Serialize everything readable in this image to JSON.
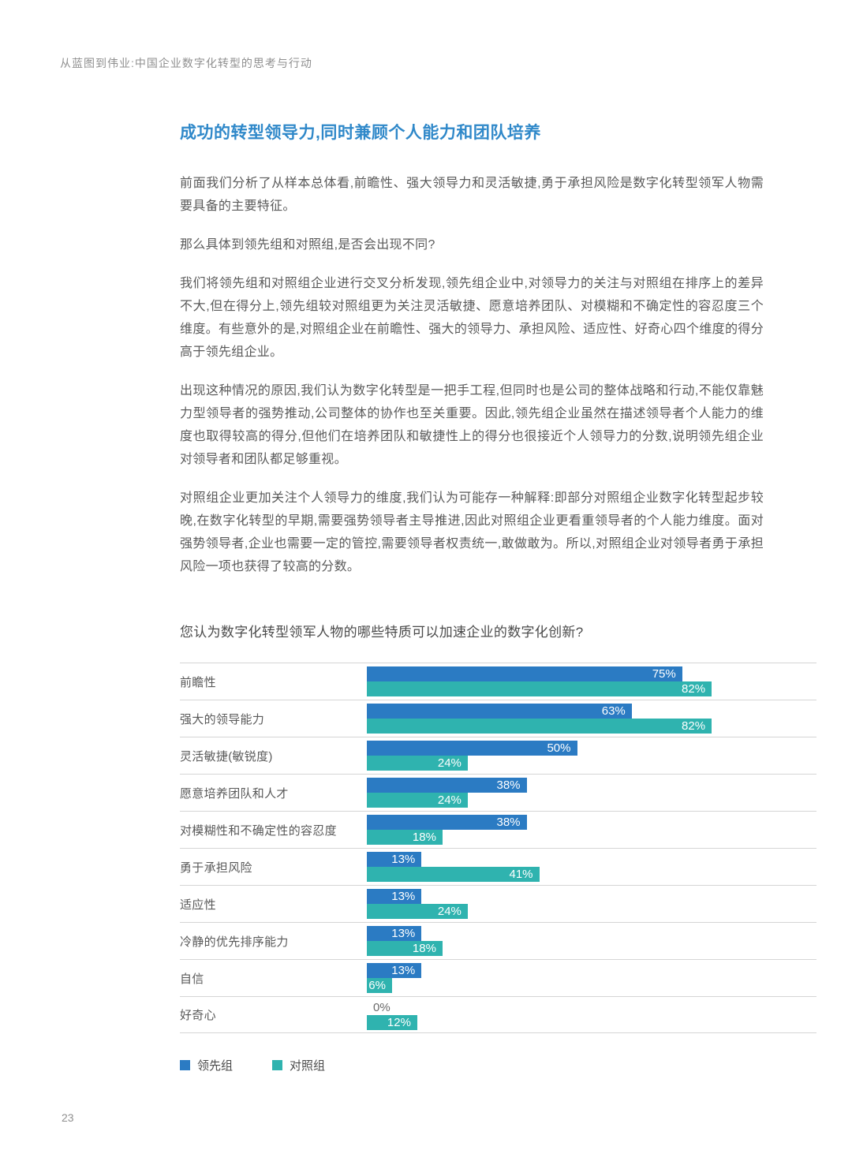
{
  "page": {
    "header": "从蓝图到伟业:中国企业数字化转型的思考与行动",
    "page_number": "23"
  },
  "article": {
    "heading": "成功的转型领导力,同时兼顾个人能力和团队培养",
    "paragraphs": [
      "前面我们分析了从样本总体看,前瞻性、强大领导力和灵活敏捷,勇于承担风险是数字化转型领军人物需要具备的主要特征。",
      "那么具体到领先组和对照组,是否会出现不同?",
      "我们将领先组和对照组企业进行交叉分析发现,领先组企业中,对领导力的关注与对照组在排序上的差异不大,但在得分上,领先组较对照组更为关注灵活敏捷、愿意培养团队、对模糊和不确定性的容忍度三个维度。有些意外的是,对照组企业在前瞻性、强大的领导力、承担风险、适应性、好奇心四个维度的得分高于领先组企业。",
      "出现这种情况的原因,我们认为数字化转型是一把手工程,但同时也是公司的整体战略和行动,不能仅靠魅力型领导者的强势推动,公司整体的协作也至关重要。因此,领先组企业虽然在描述领导者个人能力的维度也取得较高的得分,但他们在培养团队和敏捷性上的得分也很接近个人领导力的分数,说明领先组企业对领导者和团队都足够重视。",
      "对照组企业更加关注个人领导力的维度,我们认为可能存一种解释:即部分对照组企业数字化转型起步较晚,在数字化转型的早期,需要强势领导者主导推进,因此对照组企业更看重领导者的个人能力维度。面对强势领导者,企业也需要一定的管控,需要领导者权责统一,敢做敢为。所以,对照组企业对领导者勇于承担风险一项也获得了较高的分数。"
    ]
  },
  "chart_data": {
    "type": "bar",
    "orientation": "horizontal",
    "title": "您认为数字化转型领军人物的哪些特质可以加速企业的数字化创新?",
    "categories": [
      "前瞻性",
      "强大的领导能力",
      "灵活敏捷(敏锐度)",
      "愿意培养团队和人才",
      "对模糊性和不确定性的容忍度",
      "勇于承担风险",
      "适应性",
      "冷静的优先排序能力",
      "自信",
      "好奇心"
    ],
    "series": [
      {
        "name": "领先组",
        "color": "#2b7bc3",
        "values": [
          75,
          63,
          50,
          38,
          38,
          13,
          13,
          13,
          13,
          0
        ]
      },
      {
        "name": "对照组",
        "color": "#2fb3af",
        "values": [
          82,
          82,
          24,
          24,
          18,
          41,
          24,
          18,
          6,
          12
        ]
      }
    ],
    "value_suffix": "%",
    "xlim": [
      0,
      100
    ],
    "legend_position": "bottom",
    "grid": false
  }
}
